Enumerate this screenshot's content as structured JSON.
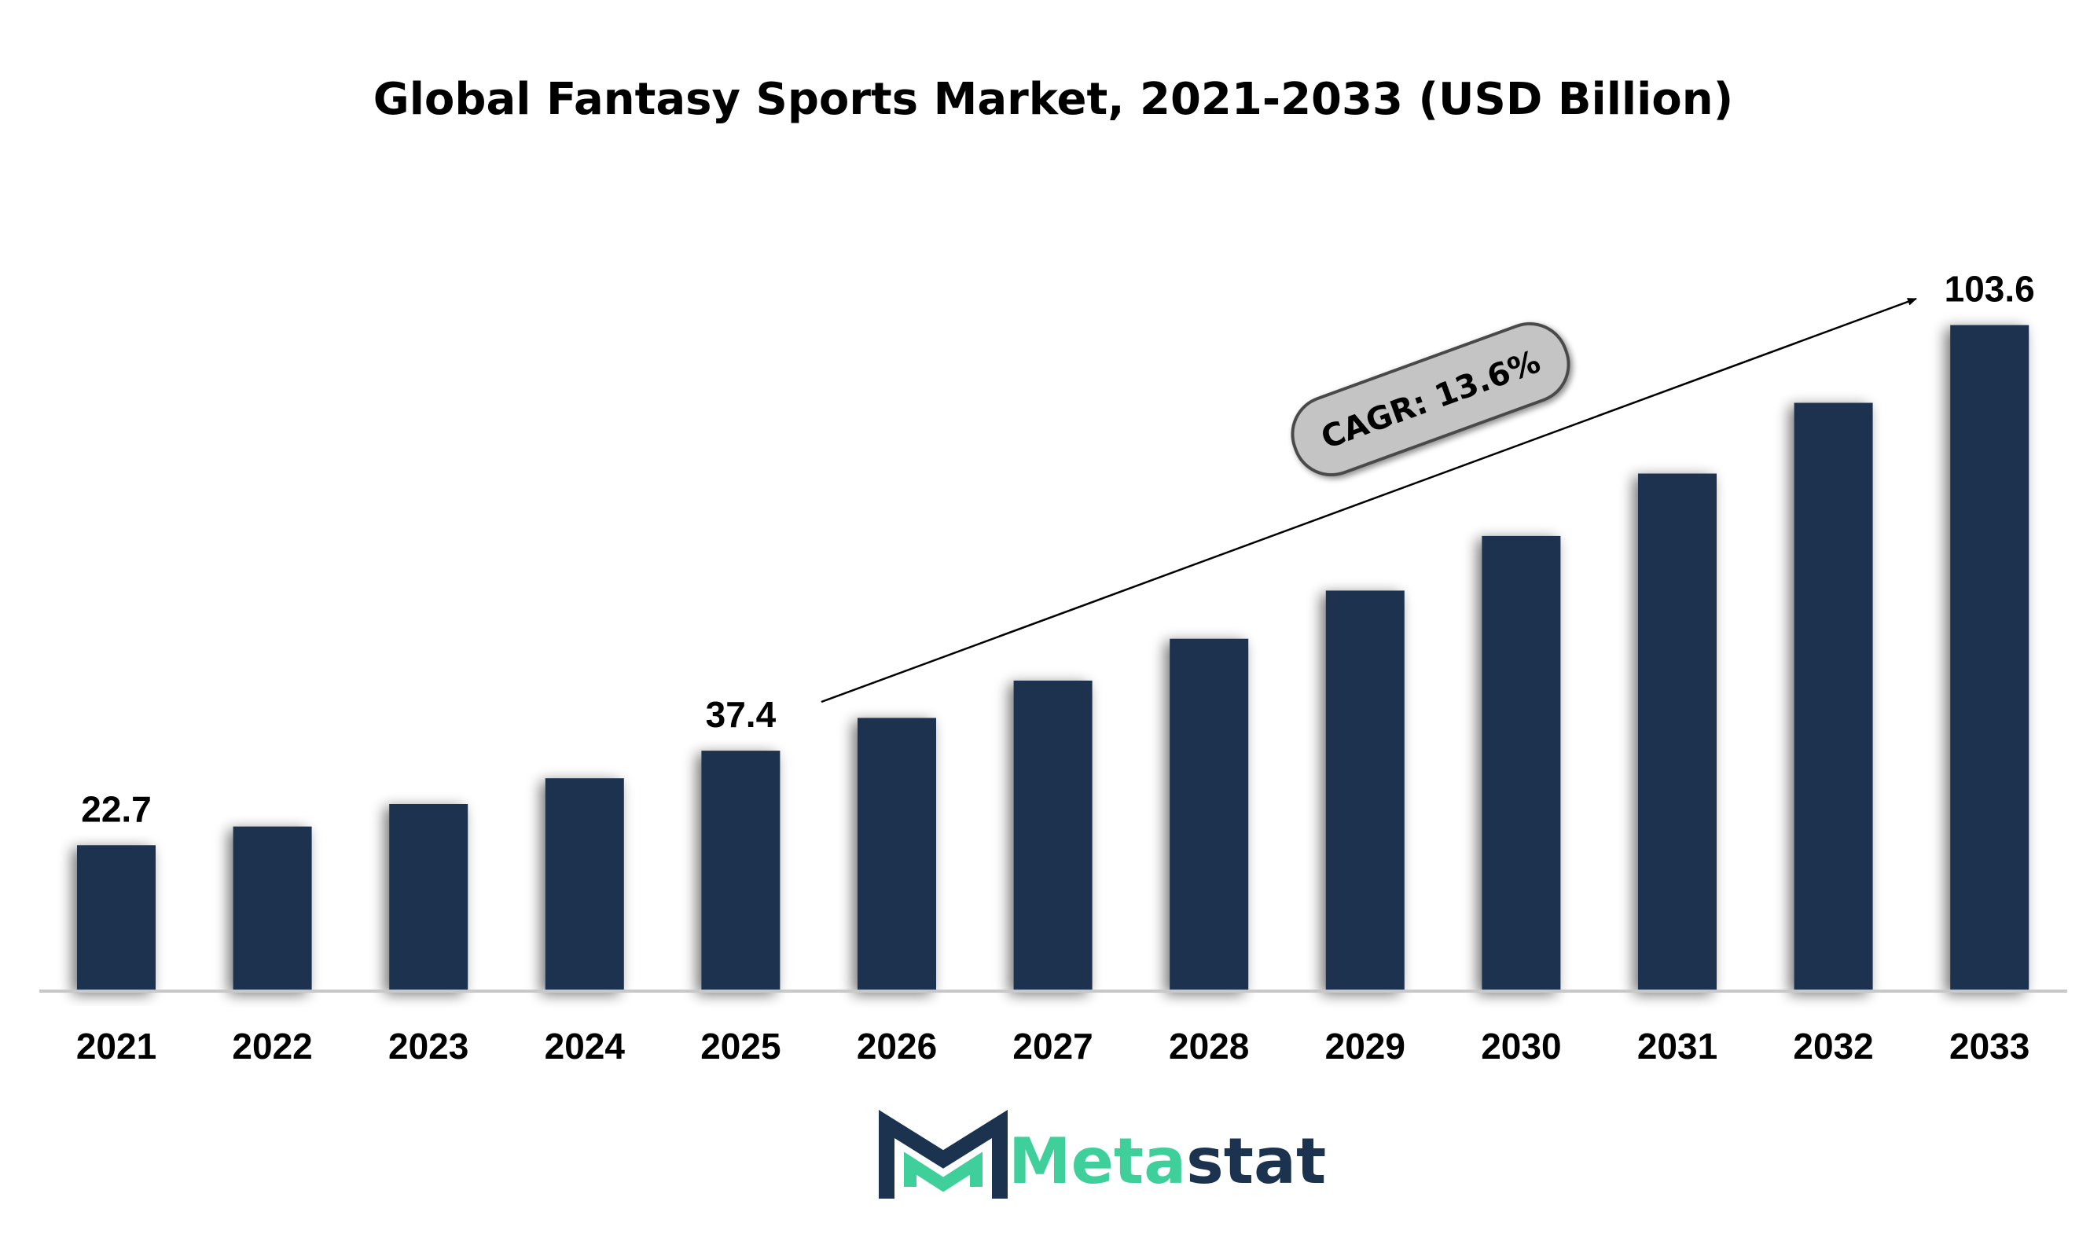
{
  "chart_data": {
    "type": "bar",
    "title": "Global Fantasy Sports Market, 2021-2033 (USD Billion)",
    "xlabel": "",
    "ylabel": "",
    "categories": [
      "2021",
      "2022",
      "2023",
      "2024",
      "2025",
      "2026",
      "2027",
      "2028",
      "2029",
      "2030",
      "2031",
      "2032",
      "2033"
    ],
    "values": [
      22.7,
      25.6,
      29.1,
      33.1,
      37.4,
      42.5,
      48.3,
      54.8,
      62.3,
      70.8,
      80.5,
      91.5,
      103.6
    ],
    "data_labels": [
      {
        "category": "2021",
        "text": "22.7"
      },
      {
        "category": "2025",
        "text": "37.4"
      },
      {
        "category": "2033",
        "text": "103.6"
      }
    ],
    "ylim": [
      0,
      120
    ],
    "grid": false,
    "legend": "none",
    "bar_color": "#1b334f",
    "annotation": {
      "text": "CAGR: 13.6%",
      "from_category": "2026",
      "to_category": "2033"
    }
  },
  "brand": {
    "name_part1": "Meta",
    "name_part2": "stat",
    "color_part1": "#3ecf9b",
    "color_part2": "#1b334f",
    "logo": "metastat-logo-icon"
  }
}
